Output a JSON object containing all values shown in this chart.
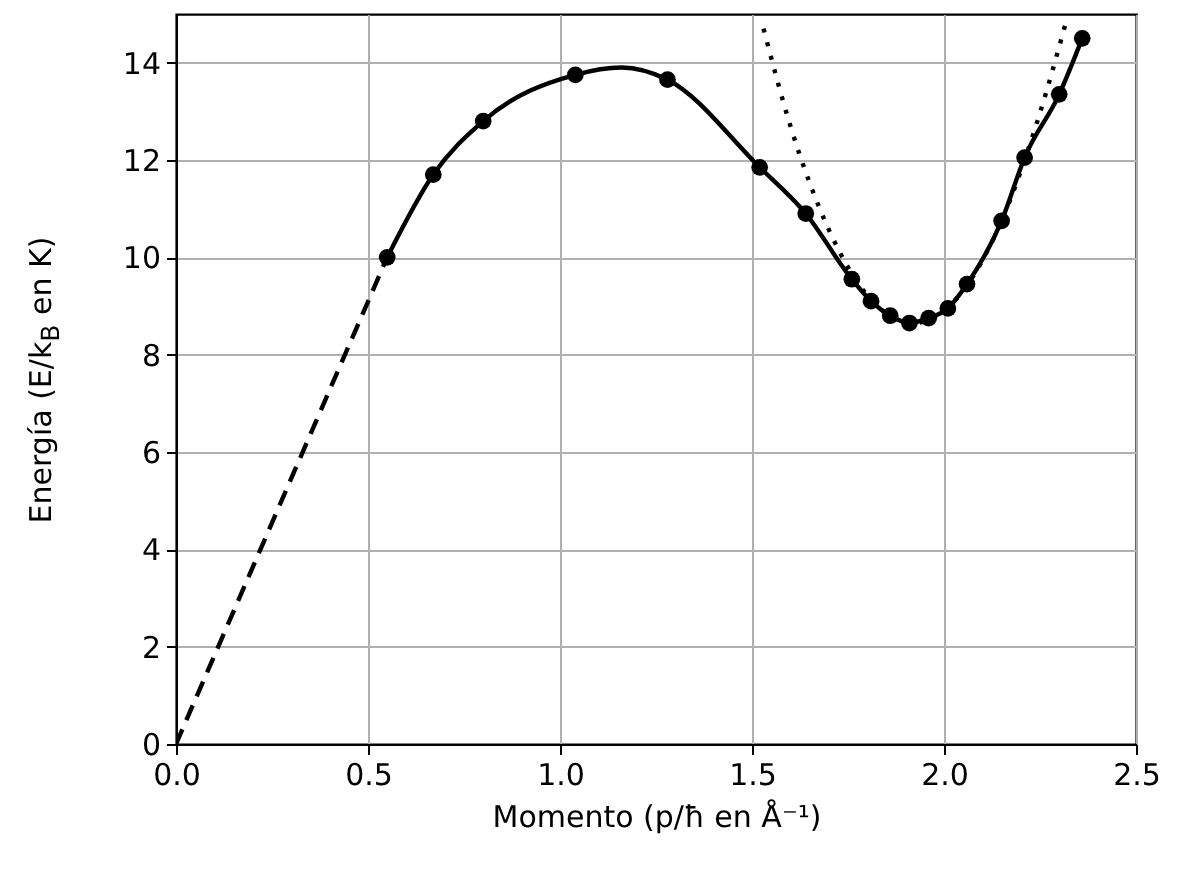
{
  "chart_data": {
    "type": "line",
    "xlabel": "Momento (p/ħ en Å⁻¹)",
    "ylabel": "Energía (E/k$_{B}$ en K)",
    "xlim": [
      0,
      2.5
    ],
    "ylim": [
      0,
      15
    ],
    "xticks": [
      {
        "value": 0,
        "label": "0.0"
      },
      0.5,
      {
        "value": 1,
        "label": "1.0"
      },
      1.5,
      {
        "value": 2,
        "label": "2.0"
      },
      2.5
    ],
    "yticks": [
      0,
      2,
      4,
      6,
      8,
      10,
      12,
      14
    ],
    "grid": true,
    "series": [
      {
        "color": "#000000",
        "line_style": "dashed",
        "x": [
          0,
          0.55
        ],
        "values": [
          0,
          10
        ]
      },
      {
        "color": "#000000",
        "line_style": "dotted",
        "x": [
          1.53,
          1.6,
          1.7,
          1.8,
          1.92,
          2.05,
          2.15,
          2.25,
          2.32
        ],
        "values": [
          14.7,
          12.7,
          10.57,
          9.22,
          8.65,
          9.32,
          10.75,
          12.97,
          14.9
        ]
      },
      {
        "color": "#000000",
        "line_style": "solid",
        "x": [
          0.55,
          0.67,
          0.8,
          1.04,
          1.16,
          1.28,
          1.52,
          1.64,
          1.76,
          1.81,
          1.86,
          1.91,
          1.96,
          2.01,
          2.06,
          2.15,
          2.21,
          2.3,
          2.36
        ],
        "values": [
          10,
          11.7,
          12.8,
          13.75,
          13.9,
          13.65,
          11.85,
          10.9,
          9.55,
          9.1,
          8.8,
          8.65,
          8.75,
          8.95,
          9.45,
          10.75,
          12.05,
          13.35,
          14.5
        ]
      },
      {
        "type": "scatter",
        "color": "#000000",
        "marker": "circle",
        "x": [
          0.55,
          0.67,
          0.8,
          1.04,
          1.28,
          1.52,
          1.64,
          1.76,
          1.81,
          1.86,
          1.91,
          1.96,
          2.01,
          2.06,
          2.15,
          2.21,
          2.3,
          2.36
        ],
        "values": [
          10,
          11.7,
          12.8,
          13.75,
          13.65,
          11.85,
          10.9,
          9.55,
          9.1,
          8.8,
          8.65,
          8.75,
          8.95,
          9.45,
          10.75,
          12.05,
          13.35,
          14.5
        ]
      }
    ]
  }
}
